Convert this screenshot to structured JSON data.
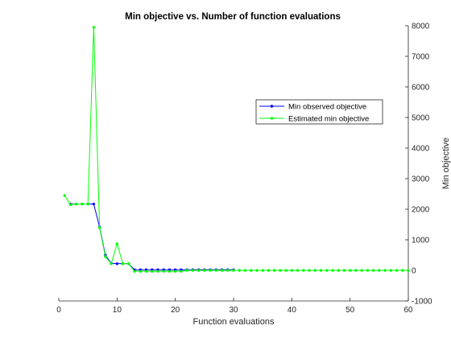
{
  "chart_data": {
    "type": "line",
    "title": "Min objective vs. Number of function evaluations",
    "xlabel": "Function evaluations",
    "ylabel": "Min objective",
    "xlim": [
      0,
      60
    ],
    "ylim": [
      -1000,
      8000
    ],
    "x_ticks": [
      "0",
      "10",
      "20",
      "30",
      "40",
      "50",
      "60"
    ],
    "y_ticks": [
      "-1000",
      "0",
      "1000",
      "2000",
      "3000",
      "4000",
      "5000",
      "6000",
      "7000",
      "8000"
    ],
    "y_axis_side": "right",
    "grid": false,
    "legend_position": "upper-right",
    "series": [
      {
        "name": "Min observed objective",
        "color": "#0000ff",
        "marker": "dot",
        "x": [
          2,
          3,
          4,
          5,
          6,
          7,
          8,
          9,
          10,
          11,
          12,
          13,
          14,
          15,
          16,
          17,
          18,
          19,
          20,
          21,
          22,
          23,
          24,
          25,
          26,
          27,
          28,
          29,
          30
        ],
        "y": [
          2170,
          2170,
          2170,
          2170,
          2170,
          1420,
          500,
          230,
          220,
          220,
          220,
          20,
          20,
          20,
          20,
          20,
          20,
          20,
          20,
          20,
          20,
          20,
          20,
          20,
          20,
          20,
          20,
          20,
          20
        ]
      },
      {
        "name": "Estimated min objective",
        "color": "#00ff00",
        "marker": "dot",
        "x": [
          1,
          2,
          3,
          4,
          5,
          6,
          7,
          8,
          9,
          10,
          11,
          12,
          13,
          14,
          15,
          16,
          17,
          18,
          19,
          20,
          21,
          22,
          23,
          24,
          25,
          26,
          27,
          28,
          29,
          30,
          31,
          32,
          33,
          34,
          35,
          36,
          37,
          38,
          39,
          40,
          41,
          42,
          43,
          44,
          45,
          46,
          47,
          48,
          49,
          50,
          51,
          52,
          53,
          54,
          55,
          56,
          57,
          58,
          59,
          60
        ],
        "y": [
          2450,
          2150,
          2170,
          2170,
          2170,
          7950,
          1400,
          450,
          220,
          870,
          220,
          220,
          -30,
          -30,
          -30,
          -30,
          -30,
          -30,
          -30,
          -30,
          -30,
          0,
          0,
          0,
          0,
          0,
          0,
          0,
          0,
          0,
          0,
          0,
          0,
          0,
          0,
          0,
          0,
          0,
          0,
          0,
          0,
          0,
          0,
          0,
          0,
          0,
          0,
          0,
          0,
          0,
          0,
          0,
          0,
          0,
          0,
          0,
          0,
          0,
          0,
          0
        ]
      }
    ]
  }
}
